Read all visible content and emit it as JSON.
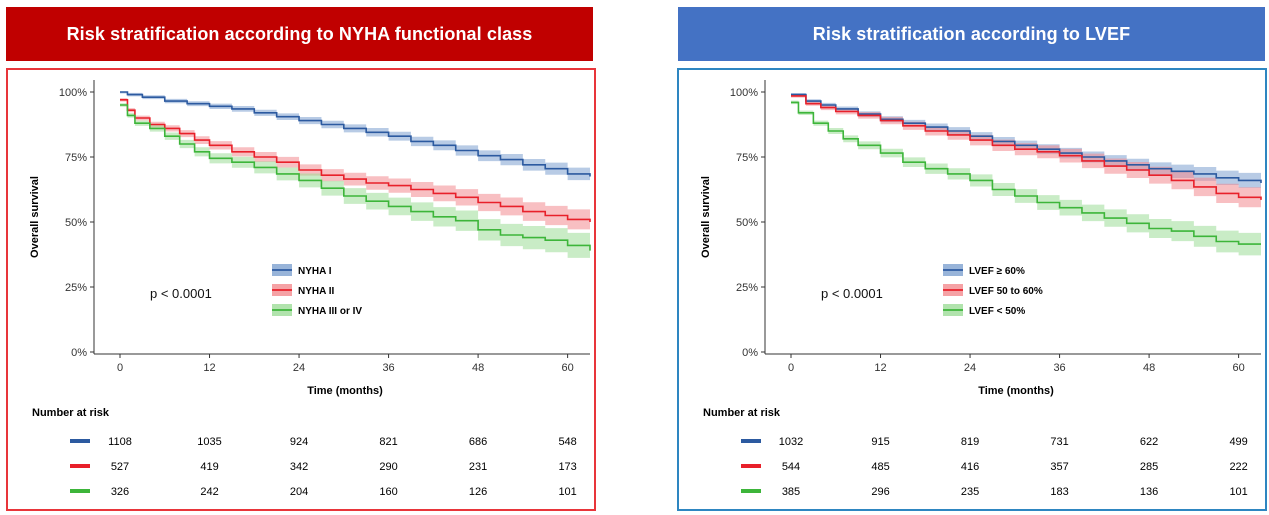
{
  "panels": [
    {
      "banner_title": "Risk stratification according to NYHA functional class",
      "colors": {
        "banner": "#c00000",
        "border": "#e8353a"
      },
      "chart_data": {
        "type": "line",
        "subtype": "kaplan-meier",
        "title": "",
        "xlabel": "Time (months)",
        "ylabel": "Overall survival",
        "xlim": [
          0,
          63
        ],
        "ylim": [
          0,
          1
        ],
        "x_ticks": [
          0,
          12,
          24,
          36,
          48,
          60
        ],
        "y_ticks": [
          0,
          0.25,
          0.5,
          0.75,
          1.0
        ],
        "y_tick_labels": [
          "0%",
          "25%",
          "50%",
          "75%",
          "100%"
        ],
        "grid": false,
        "legend_position": "center",
        "annotation": "p < 0.0001",
        "series": [
          {
            "name": "NYHA I",
            "color": "#2c5aa0",
            "band_color": "#7ea1d0",
            "points": [
              [
                0,
                1.0
              ],
              [
                1,
                0.99
              ],
              [
                3,
                0.98
              ],
              [
                6,
                0.965
              ],
              [
                9,
                0.955
              ],
              [
                12,
                0.945
              ],
              [
                15,
                0.935
              ],
              [
                18,
                0.92
              ],
              [
                21,
                0.905
              ],
              [
                24,
                0.89
              ],
              [
                27,
                0.875
              ],
              [
                30,
                0.86
              ],
              [
                33,
                0.845
              ],
              [
                36,
                0.83
              ],
              [
                39,
                0.81
              ],
              [
                42,
                0.795
              ],
              [
                45,
                0.775
              ],
              [
                48,
                0.755
              ],
              [
                51,
                0.74
              ],
              [
                54,
                0.72
              ],
              [
                57,
                0.705
              ],
              [
                60,
                0.685
              ],
              [
                63,
                0.675
              ]
            ],
            "band": 0.02
          },
          {
            "name": "NYHA II",
            "color": "#e8202a",
            "band_color": "#f28b8f",
            "points": [
              [
                0,
                0.97
              ],
              [
                1,
                0.93
              ],
              [
                2,
                0.9
              ],
              [
                4,
                0.875
              ],
              [
                6,
                0.86
              ],
              [
                8,
                0.84
              ],
              [
                10,
                0.815
              ],
              [
                12,
                0.795
              ],
              [
                15,
                0.77
              ],
              [
                18,
                0.75
              ],
              [
                21,
                0.73
              ],
              [
                24,
                0.7
              ],
              [
                27,
                0.68
              ],
              [
                30,
                0.665
              ],
              [
                33,
                0.65
              ],
              [
                36,
                0.64
              ],
              [
                39,
                0.625
              ],
              [
                42,
                0.61
              ],
              [
                45,
                0.595
              ],
              [
                48,
                0.575
              ],
              [
                51,
                0.56
              ],
              [
                54,
                0.54
              ],
              [
                57,
                0.525
              ],
              [
                60,
                0.51
              ],
              [
                63,
                0.5
              ]
            ],
            "band": 0.035
          },
          {
            "name": "NYHA III or IV",
            "color": "#3db53a",
            "band_color": "#9ddc98",
            "points": [
              [
                0,
                0.95
              ],
              [
                1,
                0.91
              ],
              [
                2,
                0.88
              ],
              [
                4,
                0.86
              ],
              [
                6,
                0.83
              ],
              [
                8,
                0.8
              ],
              [
                10,
                0.77
              ],
              [
                12,
                0.745
              ],
              [
                15,
                0.73
              ],
              [
                18,
                0.71
              ],
              [
                21,
                0.685
              ],
              [
                24,
                0.66
              ],
              [
                27,
                0.63
              ],
              [
                30,
                0.6
              ],
              [
                33,
                0.58
              ],
              [
                36,
                0.56
              ],
              [
                39,
                0.54
              ],
              [
                42,
                0.52
              ],
              [
                45,
                0.505
              ],
              [
                48,
                0.47
              ],
              [
                51,
                0.45
              ],
              [
                54,
                0.44
              ],
              [
                57,
                0.43
              ],
              [
                60,
                0.41
              ],
              [
                63,
                0.39
              ]
            ],
            "band": 0.045
          }
        ]
      },
      "risk_table": {
        "title": "Number at risk",
        "rows": [
          {
            "color": "#2c5aa0",
            "values": [
              "1108",
              "1035",
              "924",
              "821",
              "686",
              "548"
            ]
          },
          {
            "color": "#e8202a",
            "values": [
              "527",
              "419",
              "342",
              "290",
              "231",
              "173"
            ]
          },
          {
            "color": "#3db53a",
            "values": [
              "326",
              "242",
              "204",
              "160",
              "126",
              "101"
            ]
          }
        ]
      }
    },
    {
      "banner_title": "Risk stratification according to LVEF",
      "colors": {
        "banner": "#4472c4",
        "border": "#2e86c1"
      },
      "chart_data": {
        "type": "line",
        "subtype": "kaplan-meier",
        "title": "",
        "xlabel": "Time (months)",
        "ylabel": "Overall survival",
        "xlim": [
          0,
          63
        ],
        "ylim": [
          0,
          1
        ],
        "x_ticks": [
          0,
          12,
          24,
          36,
          48,
          60
        ],
        "y_ticks": [
          0,
          0.25,
          0.5,
          0.75,
          1.0
        ],
        "y_tick_labels": [
          "0%",
          "25%",
          "50%",
          "75%",
          "100%"
        ],
        "grid": false,
        "legend_position": "center",
        "annotation": "p < 0.0001",
        "series": [
          {
            "name": "LVEF ≥ 60%",
            "color": "#2c5aa0",
            "band_color": "#7ea1d0",
            "points": [
              [
                0,
                0.99
              ],
              [
                2,
                0.965
              ],
              [
                4,
                0.95
              ],
              [
                6,
                0.935
              ],
              [
                9,
                0.915
              ],
              [
                12,
                0.895
              ],
              [
                15,
                0.88
              ],
              [
                18,
                0.865
              ],
              [
                21,
                0.85
              ],
              [
                24,
                0.83
              ],
              [
                27,
                0.81
              ],
              [
                30,
                0.795
              ],
              [
                33,
                0.78
              ],
              [
                36,
                0.765
              ],
              [
                39,
                0.75
              ],
              [
                42,
                0.735
              ],
              [
                45,
                0.72
              ],
              [
                48,
                0.705
              ],
              [
                51,
                0.695
              ],
              [
                54,
                0.685
              ],
              [
                57,
                0.67
              ],
              [
                60,
                0.66
              ],
              [
                63,
                0.65
              ]
            ],
            "band": 0.025
          },
          {
            "name": "LVEF 50 to 60%",
            "color": "#e8202a",
            "band_color": "#f28b8f",
            "points": [
              [
                0,
                0.985
              ],
              [
                2,
                0.955
              ],
              [
                4,
                0.94
              ],
              [
                6,
                0.925
              ],
              [
                9,
                0.91
              ],
              [
                12,
                0.89
              ],
              [
                15,
                0.87
              ],
              [
                18,
                0.85
              ],
              [
                21,
                0.835
              ],
              [
                24,
                0.815
              ],
              [
                27,
                0.795
              ],
              [
                30,
                0.78
              ],
              [
                33,
                0.77
              ],
              [
                36,
                0.755
              ],
              [
                39,
                0.735
              ],
              [
                42,
                0.715
              ],
              [
                45,
                0.7
              ],
              [
                48,
                0.68
              ],
              [
                51,
                0.66
              ],
              [
                54,
                0.635
              ],
              [
                57,
                0.61
              ],
              [
                60,
                0.595
              ],
              [
                63,
                0.585
              ]
            ],
            "band": 0.035
          },
          {
            "name": "LVEF < 50%",
            "color": "#3db53a",
            "band_color": "#9ddc98",
            "points": [
              [
                0,
                0.96
              ],
              [
                1,
                0.92
              ],
              [
                3,
                0.88
              ],
              [
                5,
                0.85
              ],
              [
                7,
                0.82
              ],
              [
                9,
                0.795
              ],
              [
                12,
                0.765
              ],
              [
                15,
                0.73
              ],
              [
                18,
                0.705
              ],
              [
                21,
                0.685
              ],
              [
                24,
                0.66
              ],
              [
                27,
                0.625
              ],
              [
                30,
                0.6
              ],
              [
                33,
                0.575
              ],
              [
                36,
                0.555
              ],
              [
                39,
                0.535
              ],
              [
                42,
                0.515
              ],
              [
                45,
                0.495
              ],
              [
                48,
                0.475
              ],
              [
                51,
                0.465
              ],
              [
                54,
                0.445
              ],
              [
                57,
                0.425
              ],
              [
                60,
                0.415
              ],
              [
                63,
                0.415
              ]
            ],
            "band": 0.04
          }
        ]
      },
      "risk_table": {
        "title": "Number at risk",
        "rows": [
          {
            "color": "#2c5aa0",
            "values": [
              "1032",
              "915",
              "819",
              "731",
              "622",
              "499"
            ]
          },
          {
            "color": "#e8202a",
            "values": [
              "544",
              "485",
              "416",
              "357",
              "285",
              "222"
            ]
          },
          {
            "color": "#3db53a",
            "values": [
              "385",
              "296",
              "235",
              "183",
              "136",
              "101"
            ]
          }
        ]
      }
    }
  ]
}
